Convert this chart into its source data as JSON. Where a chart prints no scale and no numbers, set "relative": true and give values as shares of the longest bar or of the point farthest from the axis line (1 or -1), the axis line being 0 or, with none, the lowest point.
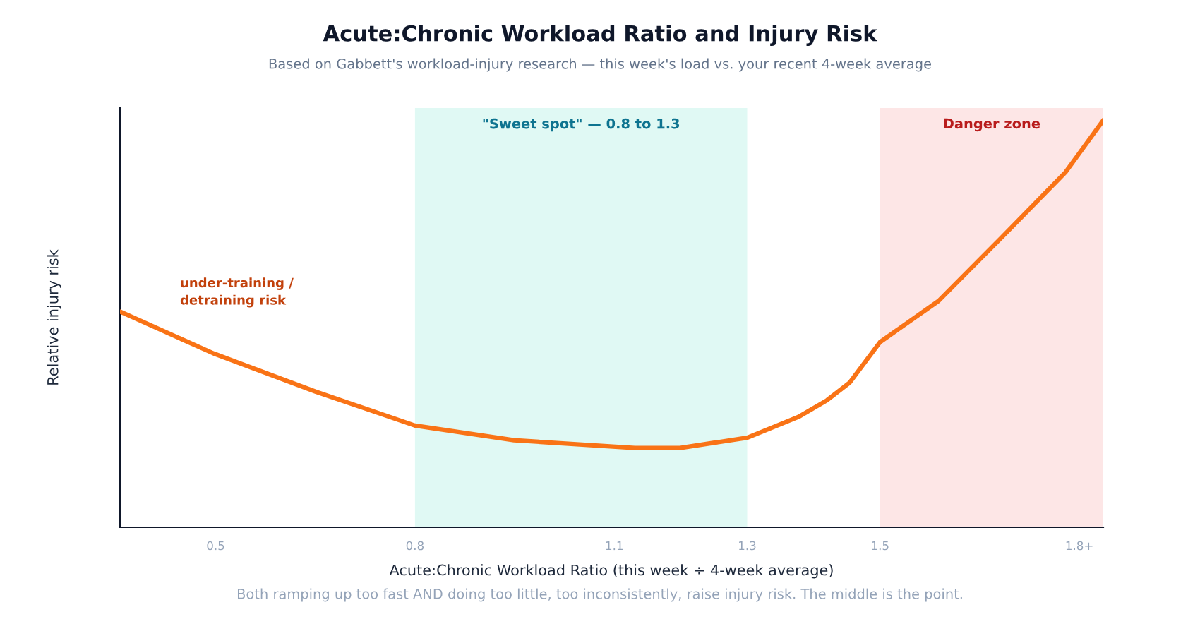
{
  "chart_data": {
    "type": "line",
    "title": "Acute:Chronic Workload Ratio and Injury Risk",
    "subtitle": "Based on Gabbett's workload-injury research — this week's load vs. your recent 4-week average",
    "xlabel": "Acute:Chronic Workload Ratio (this week ÷ 4-week average)",
    "ylabel": "Relative injury risk",
    "relative": true,
    "x": [
      0.356,
      0.497,
      0.651,
      0.8,
      0.949,
      1.131,
      1.199,
      1.3,
      1.377,
      1.42,
      1.454,
      1.5,
      1.588,
      1.683,
      1.779,
      1.836
    ],
    "series": [
      {
        "color": "#f97316",
        "values": [
          0.53,
          0.427,
          0.333,
          0.25,
          0.214,
          0.195,
          0.195,
          0.22,
          0.271,
          0.312,
          0.355,
          0.455,
          0.556,
          0.712,
          0.872,
          1.0
        ]
      }
    ],
    "xlim": [
      0.356,
      1.836
    ],
    "xticks": [
      0.5,
      0.8,
      1.1,
      1.3,
      1.5,
      {
        "value": 1.8,
        "label": "1.8+"
      }
    ],
    "bands": [
      {
        "axis": "x",
        "from": 0.8,
        "to": 1.3,
        "label": "\"Sweet spot\" — 0.8 to 1.3",
        "color": "#e0f9f4"
      },
      {
        "axis": "x",
        "from": 1.5,
        "to": 1.836,
        "label": "Danger zone",
        "color": "#fde6e6"
      }
    ],
    "annotations": [
      "under-training /\ndetraining risk",
      "Both ramping up too fast AND doing too little, too inconsistently, raise injury risk. The middle is the point."
    ],
    "grid": false,
    "legend": false,
    "marker": "none",
    "line_style": "solid"
  }
}
